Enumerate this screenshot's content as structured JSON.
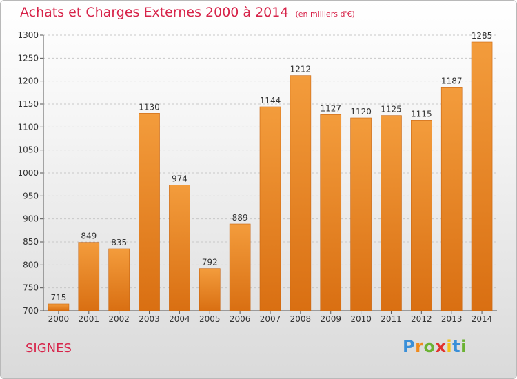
{
  "title": "Achats et Charges Externes 2000 à 2014",
  "unit": "(en milliers d'€)",
  "town": "SIGNES",
  "logo": {
    "text": "Proxiti",
    "letters": [
      "P",
      "r",
      "o",
      "x",
      "i",
      "t",
      "i"
    ],
    "colors": [
      "#3a8fd8",
      "#f08a1c",
      "#6bb233",
      "#e2322d",
      "#f2c21b",
      "#3a8fd8",
      "#6bb233"
    ]
  },
  "chart_data": {
    "type": "bar",
    "categories": [
      "2000",
      "2001",
      "2002",
      "2003",
      "2004",
      "2005",
      "2006",
      "2007",
      "2008",
      "2009",
      "2010",
      "2011",
      "2012",
      "2013",
      "2014"
    ],
    "values": [
      715,
      849,
      835,
      1130,
      974,
      792,
      889,
      1144,
      1212,
      1127,
      1120,
      1125,
      1115,
      1187,
      1285
    ],
    "ylim": [
      700,
      1300
    ],
    "yticks": [
      700,
      750,
      800,
      850,
      900,
      950,
      1000,
      1050,
      1100,
      1150,
      1200,
      1250,
      1300
    ],
    "grid": true,
    "bar_color": "#f39c3c",
    "bar_color_dark": "#d96f12",
    "xlabel": "",
    "ylabel": ""
  }
}
